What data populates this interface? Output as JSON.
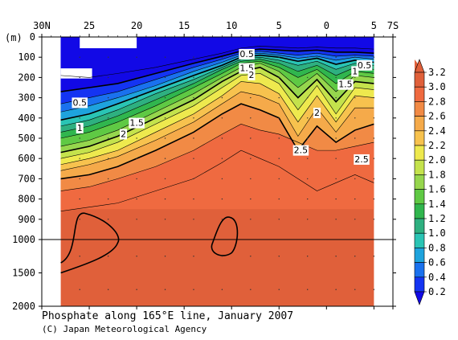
{
  "chart_data": {
    "type": "heatmap",
    "title": "Phosphate along 165°E line, January 2007",
    "credit": "(C) Japan Meteorological Agency",
    "y_unit": "(m)",
    "x_ticks": [
      {
        "lat": 30,
        "label": "30N"
      },
      {
        "lat": 25,
        "label": "25"
      },
      {
        "lat": 20,
        "label": "20"
      },
      {
        "lat": 15,
        "label": "15"
      },
      {
        "lat": 10,
        "label": "10"
      },
      {
        "lat": 5,
        "label": "5"
      },
      {
        "lat": 0,
        "label": "0"
      },
      {
        "lat": -5,
        "label": "5"
      },
      {
        "lat": -7,
        "label": "7S"
      }
    ],
    "upper_depth_ticks": [
      0,
      100,
      200,
      300,
      400,
      500,
      600,
      700,
      800,
      900,
      1000
    ],
    "lower_depth_ticks": [
      1500,
      2000
    ],
    "depth_split": 1000,
    "colorbar_levels": [
      "3.2",
      "3.0",
      "2.8",
      "2.6",
      "2.4",
      "2.2",
      "2.0",
      "1.8",
      "1.6",
      "1.4",
      "1.2",
      "1.0",
      "0.8",
      "0.6",
      "0.4",
      "0.2"
    ],
    "colorbar_colors": [
      "#e0603a",
      "#ef6a40",
      "#f18a45",
      "#f5aa4a",
      "#f7c24e",
      "#eee94e",
      "#c4e24c",
      "#96d64d",
      "#5fc944",
      "#30b64e",
      "#2eb080",
      "#2ac4b4",
      "#1ea3dd",
      "#1a71ee",
      "#1434f2",
      "#1209e6"
    ],
    "contour_labels": [
      {
        "text": "0.5",
        "lat": 8.4,
        "depth": 85
      },
      {
        "text": "1.5",
        "lat": 8.4,
        "depth": 155
      },
      {
        "text": "2",
        "lat": 7.9,
        "depth": 188
      },
      {
        "text": "0.5",
        "lat": 26,
        "depth": 325
      },
      {
        "text": "1",
        "lat": 26,
        "depth": 450
      },
      {
        "text": "1.5",
        "lat": 20,
        "depth": 425
      },
      {
        "text": "2",
        "lat": 21.4,
        "depth": 480
      },
      {
        "text": "0.5",
        "lat": -4,
        "depth": 140
      },
      {
        "text": "1",
        "lat": -3,
        "depth": 170
      },
      {
        "text": "1.5",
        "lat": -2,
        "depth": 235
      },
      {
        "text": "2",
        "lat": 1,
        "depth": 375
      },
      {
        "text": "2.5",
        "lat": 2.7,
        "depth": 560
      },
      {
        "text": "2.5",
        "lat": -3.7,
        "depth": 605
      }
    ]
  }
}
